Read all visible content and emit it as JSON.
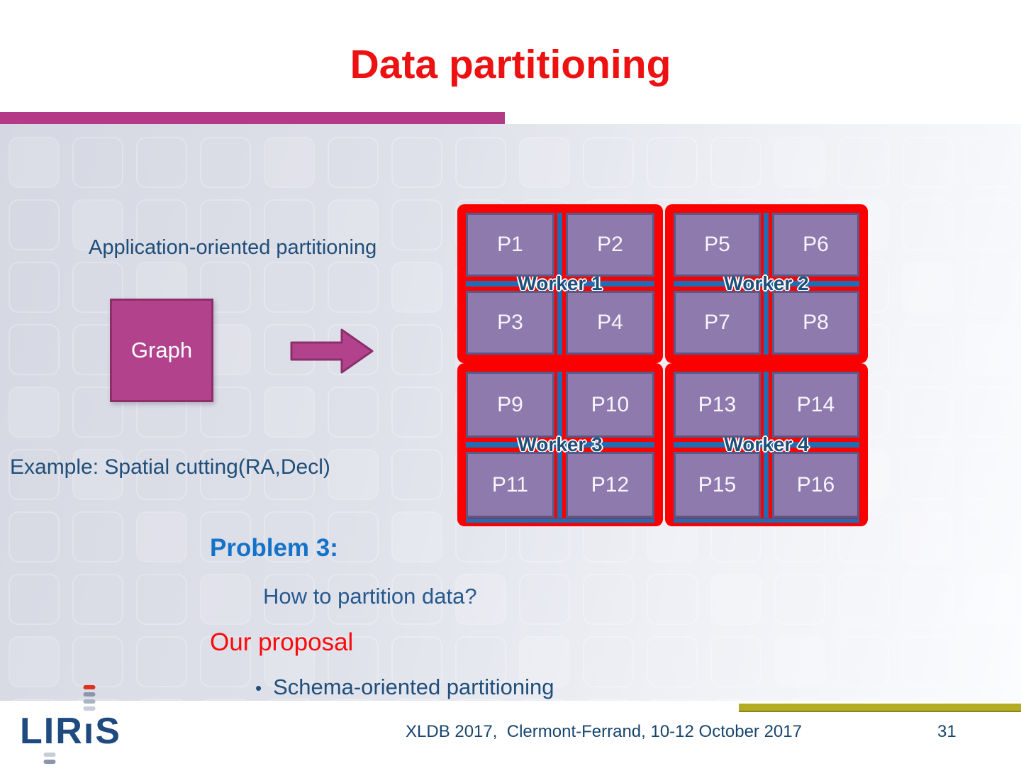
{
  "title": "Data partitioning",
  "labels": {
    "application": "Application-oriented partitioning",
    "graph": "Graph",
    "example": "Example: Spatial cutting(RA,Decl)",
    "problem": "Problem 3:",
    "question": "How to partition data?",
    "proposal": "Our proposal",
    "bullet": "Schema-oriented partitioning"
  },
  "workers": [
    {
      "label": "Worker 1",
      "partitions": [
        "P1",
        "P2",
        "P3",
        "P4"
      ]
    },
    {
      "label": "Worker 2",
      "partitions": [
        "P5",
        "P6",
        "P7",
        "P8"
      ]
    },
    {
      "label": "Worker 3",
      "partitions": [
        "P9",
        "P10",
        "P11",
        "P12"
      ]
    },
    {
      "label": "Worker 4",
      "partitions": [
        "P13",
        "P14",
        "P15",
        "P16"
      ]
    }
  ],
  "footer": {
    "logo_letters": [
      "L",
      "I",
      "R",
      "ı",
      "S"
    ],
    "conference": "XLDB 2017,  Clermont-Ferrand, 10-12 October 2017",
    "page": "31"
  },
  "colors": {
    "title_red": "#ed1111",
    "accent_magenta": "#b23a87",
    "graph_magenta": "#b2428c",
    "frame_red": "#fb0000",
    "partition_purple": "#8e7aad",
    "partition_border": "#575a88",
    "divider_blue": "#1e6eb5",
    "text_blue": "#1f4e79",
    "problem_blue": "#1473c8",
    "proposal_red": "#fb0a0a",
    "footer_olive": "#b3ad23",
    "logo_blue": "#1e4a80"
  }
}
